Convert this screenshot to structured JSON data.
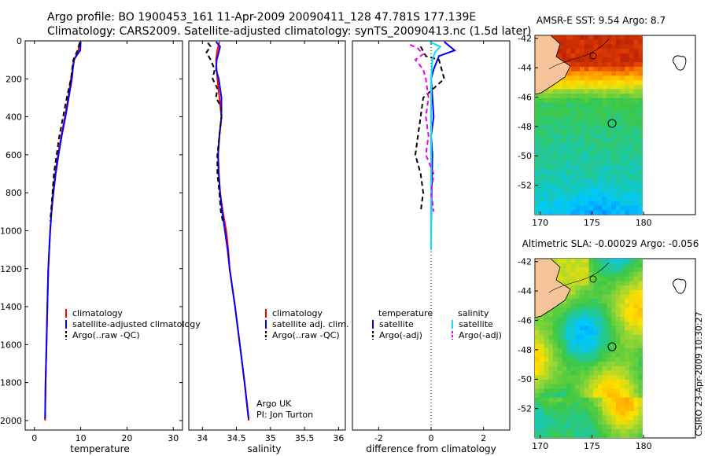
{
  "header": {
    "line1": "Argo profile: BO 1900453_161 11-Apr-2009 20090411_128 47.781S 177.139E",
    "line2": "Climatology: CARS2009. Satellite-adjusted climatology: synTS_20090413.nc (1.5d later)"
  },
  "side_label": "CSIRO 23-Apr-2009 10:30:27",
  "colors": {
    "climatology": "#ff0000",
    "satellite": "#0000ff",
    "argo": "#000000",
    "satellite_salinity": "#00e5ee",
    "argo_salinity": "#ee00ee",
    "land": "#f5c49a"
  },
  "chart_data": [
    {
      "id": "temperature",
      "type": "line",
      "xlabel": "temperature",
      "ylabel": "",
      "xlim": [
        -2,
        32
      ],
      "ylim": [
        2050,
        0
      ],
      "xticks": [
        0,
        10,
        20,
        30
      ],
      "yticks": [
        0,
        200,
        400,
        600,
        800,
        1000,
        1200,
        1400,
        1600,
        1800,
        2000
      ],
      "legend": [
        "climatology",
        "satellite-adjusted climatology",
        "Argo(..raw -QC)"
      ],
      "series": [
        {
          "name": "climatology",
          "color": "#ff0000",
          "dash": "",
          "points": [
            [
              9.8,
              5
            ],
            [
              9.5,
              50
            ],
            [
              8.6,
              100
            ],
            [
              7.9,
              200
            ],
            [
              7.3,
              300
            ],
            [
              6.6,
              400
            ],
            [
              5.8,
              500
            ],
            [
              5.1,
              600
            ],
            [
              4.5,
              700
            ],
            [
              4.0,
              800
            ],
            [
              3.7,
              900
            ],
            [
              3.4,
              1000
            ],
            [
              3.2,
              1100
            ],
            [
              3.0,
              1200
            ],
            [
              2.8,
              1400
            ],
            [
              2.6,
              1600
            ],
            [
              2.4,
              1800
            ],
            [
              2.3,
              2000
            ]
          ]
        },
        {
          "name": "satellite-adjusted climatology",
          "color": "#0000ff",
          "dash": "",
          "points": [
            [
              10.0,
              5
            ],
            [
              9.9,
              50
            ],
            [
              8.5,
              100
            ],
            [
              8.1,
              200
            ],
            [
              7.4,
              300
            ],
            [
              6.7,
              400
            ],
            [
              5.9,
              500
            ],
            [
              5.2,
              600
            ],
            [
              4.6,
              700
            ],
            [
              4.1,
              800
            ],
            [
              3.7,
              900
            ],
            [
              3.4,
              1000
            ],
            [
              3.2,
              1100
            ],
            [
              3.0,
              1200
            ],
            [
              2.8,
              1400
            ],
            [
              2.6,
              1600
            ],
            [
              2.4,
              1800
            ],
            [
              2.3,
              1990
            ]
          ]
        },
        {
          "name": "Argo(..raw -QC)",
          "color": "#000000",
          "dash": "6,4",
          "points": [
            [
              9.8,
              10
            ],
            [
              9.3,
              50
            ],
            [
              8.4,
              100
            ],
            [
              7.9,
              200
            ],
            [
              7.0,
              300
            ],
            [
              6.2,
              400
            ],
            [
              5.4,
              500
            ],
            [
              4.8,
              600
            ],
            [
              4.2,
              700
            ],
            [
              3.9,
              800
            ],
            [
              3.6,
              900
            ],
            [
              3.4,
              950
            ]
          ]
        }
      ]
    },
    {
      "id": "salinity",
      "type": "line",
      "xlabel": "salinity",
      "ylabel": "",
      "xlim": [
        33.8,
        36.1
      ],
      "ylim": [
        2050,
        0
      ],
      "xticks": [
        34,
        34.5,
        35,
        35.5,
        36
      ],
      "xticklabels": [
        "34",
        "34.5",
        "35",
        "35.5",
        "36"
      ],
      "legend": [
        "climatology",
        "satellite adj. clim.",
        "Argo(..raw -QC)"
      ],
      "annotation": [
        "Argo UK",
        "PI: Jon Turton"
      ],
      "series": [
        {
          "name": "climatology",
          "color": "#ff0000",
          "dash": "",
          "points": [
            [
              34.25,
              5
            ],
            [
              34.22,
              50
            ],
            [
              34.2,
              100
            ],
            [
              34.22,
              200
            ],
            [
              34.25,
              300
            ],
            [
              34.28,
              400
            ],
            [
              34.25,
              500
            ],
            [
              34.23,
              600
            ],
            [
              34.24,
              700
            ],
            [
              34.26,
              800
            ],
            [
              34.3,
              900
            ],
            [
              34.35,
              1000
            ],
            [
              34.38,
              1100
            ],
            [
              34.4,
              1200
            ],
            [
              34.48,
              1400
            ],
            [
              34.55,
              1600
            ],
            [
              34.62,
              1800
            ],
            [
              34.68,
              2000
            ]
          ]
        },
        {
          "name": "satellite adj. clim.",
          "color": "#0000ff",
          "dash": "",
          "points": [
            [
              34.2,
              5
            ],
            [
              34.26,
              30
            ],
            [
              34.24,
              60
            ],
            [
              34.21,
              100
            ],
            [
              34.2,
              150
            ],
            [
              34.24,
              200
            ],
            [
              34.28,
              300
            ],
            [
              34.28,
              400
            ],
            [
              34.25,
              500
            ],
            [
              34.23,
              600
            ],
            [
              34.24,
              700
            ],
            [
              34.26,
              800
            ],
            [
              34.29,
              900
            ],
            [
              34.33,
              1000
            ],
            [
              34.37,
              1100
            ],
            [
              34.4,
              1200
            ],
            [
              34.48,
              1400
            ],
            [
              34.55,
              1600
            ],
            [
              34.62,
              1800
            ],
            [
              34.68,
              1990
            ]
          ]
        },
        {
          "name": "Argo(..raw -QC)",
          "color": "#000000",
          "dash": "6,4",
          "points": [
            [
              34.08,
              10
            ],
            [
              34.12,
              30
            ],
            [
              34.06,
              60
            ],
            [
              34.12,
              100
            ],
            [
              34.18,
              150
            ],
            [
              34.15,
              200
            ],
            [
              34.22,
              250
            ],
            [
              34.2,
              300
            ],
            [
              34.28,
              350
            ],
            [
              34.28,
              400
            ],
            [
              34.25,
              500
            ],
            [
              34.22,
              600
            ],
            [
              34.22,
              700
            ],
            [
              34.25,
              800
            ],
            [
              34.27,
              900
            ],
            [
              34.3,
              950
            ]
          ]
        }
      ]
    },
    {
      "id": "difference",
      "type": "line",
      "xlabel": "difference from climatology",
      "ylabel": "",
      "xlim": [
        -3,
        3
      ],
      "ylim": [
        2050,
        0
      ],
      "xticks": [
        -2,
        0,
        2
      ],
      "legend_headers": [
        "temperature",
        "salinity"
      ],
      "legend": [
        "satellite",
        "Argo(-adj)",
        "satellite",
        "Argo(-adj)"
      ],
      "series": [
        {
          "name": "temperature satellite",
          "color": "#0000ff",
          "dash": "",
          "points": [
            [
              0.5,
              5
            ],
            [
              0.9,
              50
            ],
            [
              0.3,
              80
            ],
            [
              0.1,
              150
            ],
            [
              0.0,
              200
            ],
            [
              0.05,
              300
            ],
            [
              0.1,
              400
            ],
            [
              0.0,
              500
            ],
            [
              0.05,
              600
            ],
            [
              0.02,
              800
            ],
            [
              0.0,
              1000
            ],
            [
              0.0,
              1100
            ]
          ]
        },
        {
          "name": "temperature Argo(-adj)",
          "color": "#000000",
          "dash": "6,4",
          "points": [
            [
              -0.4,
              30
            ],
            [
              -0.2,
              80
            ],
            [
              0.3,
              100
            ],
            [
              0.5,
              200
            ],
            [
              -0.3,
              300
            ],
            [
              -0.4,
              400
            ],
            [
              -0.5,
              500
            ],
            [
              -0.6,
              600
            ],
            [
              -0.4,
              700
            ],
            [
              -0.3,
              800
            ],
            [
              -0.4,
              900
            ]
          ]
        },
        {
          "name": "salinity satellite",
          "color": "#00e5ee",
          "dash": "",
          "points": [
            [
              -0.05,
              5
            ],
            [
              0.35,
              30
            ],
            [
              0.15,
              60
            ],
            [
              0.05,
              100
            ],
            [
              0.0,
              200
            ],
            [
              0.0,
              400
            ],
            [
              0.0,
              600
            ],
            [
              0.0,
              800
            ],
            [
              0.0,
              1000
            ],
            [
              0.0,
              1100
            ]
          ]
        },
        {
          "name": "salinity Argo(-adj)",
          "color": "#ee00ee",
          "dash": "6,4",
          "points": [
            [
              -0.8,
              20
            ],
            [
              -0.5,
              40
            ],
            [
              -0.3,
              70
            ],
            [
              -0.6,
              100
            ],
            [
              -0.3,
              150
            ],
            [
              -0.2,
              200
            ],
            [
              -0.1,
              300
            ],
            [
              -0.2,
              400
            ],
            [
              -0.1,
              500
            ],
            [
              -0.2,
              600
            ],
            [
              0.1,
              700
            ],
            [
              0.0,
              800
            ],
            [
              0.1,
              900
            ]
          ]
        }
      ]
    },
    {
      "id": "sst_map",
      "type": "heatmap",
      "title": "AMSR-E SST: 9.54 Argo: 8.7",
      "xlim": [
        169.5,
        185
      ],
      "ylim": [
        -54,
        -41.8
      ],
      "xticks": [
        170,
        175,
        180
      ],
      "yticks": [
        -42,
        -44,
        -46,
        -48,
        -50,
        -52
      ],
      "argo_position": [
        177.139,
        -47.781
      ]
    },
    {
      "id": "sla_map",
      "type": "heatmap",
      "title": "Altimetric SLA: -0.00029 Argo: -0.056",
      "xlim": [
        169.5,
        185
      ],
      "ylim": [
        -54,
        -41.8
      ],
      "xticks": [
        170,
        175,
        180
      ],
      "yticks": [
        -42,
        -44,
        -46,
        -48,
        -50,
        -52
      ],
      "argo_position": [
        177.139,
        -47.781
      ]
    }
  ]
}
